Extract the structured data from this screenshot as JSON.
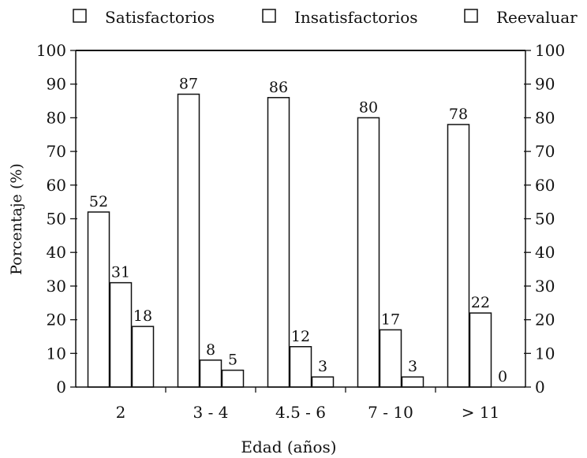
{
  "chart_data": {
    "type": "bar",
    "title": "",
    "xlabel": "Edad (años)",
    "ylabel": "Porcentaje (%)",
    "ylim": [
      0,
      100
    ],
    "yticks": [
      0,
      10,
      20,
      30,
      40,
      50,
      60,
      70,
      80,
      90,
      100
    ],
    "categories": [
      "2",
      "3 - 4",
      "4.5 - 6",
      "7 - 10",
      "> 11"
    ],
    "series": [
      {
        "name": "Satisfactorios",
        "values": [
          52,
          87,
          86,
          80,
          78
        ]
      },
      {
        "name": "Insatisfactorios",
        "values": [
          31,
          8,
          12,
          17,
          22
        ]
      },
      {
        "name": "Reevaluar",
        "values": [
          18,
          5,
          3,
          3,
          0
        ]
      }
    ],
    "legend_position": "top",
    "grid": false,
    "colors": {
      "bar_fill": "#ffffff",
      "stroke": "#111111"
    }
  }
}
